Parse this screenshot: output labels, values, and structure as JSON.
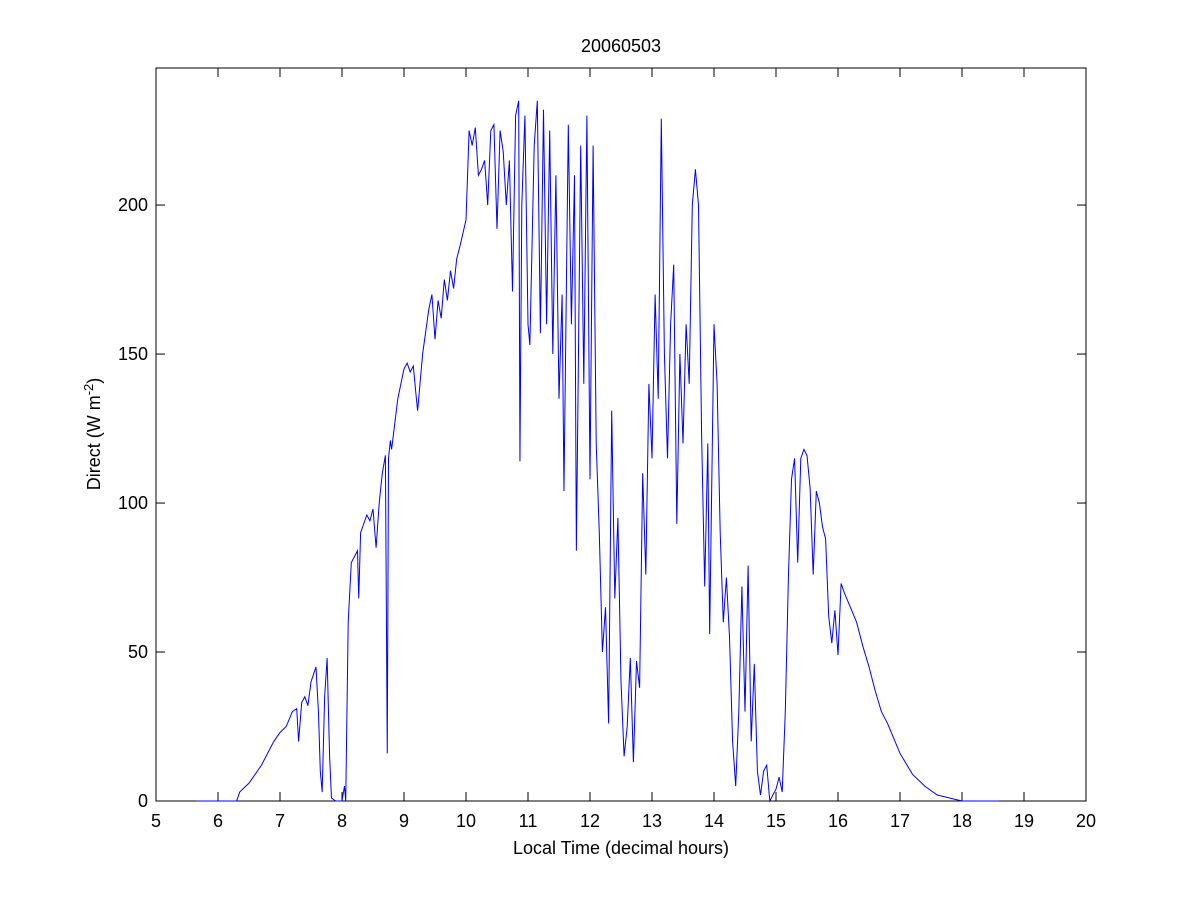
{
  "chart_data": {
    "type": "line",
    "title": "20060503",
    "xlabel": "Local Time (decimal hours)",
    "ylabel_parts": [
      "Direct (W m",
      "-2",
      ")"
    ],
    "xlim": [
      5,
      20
    ],
    "xticks": [
      5,
      6,
      7,
      8,
      9,
      10,
      11,
      12,
      13,
      14,
      15,
      16,
      17,
      18,
      19,
      20
    ],
    "ylim": [
      0,
      246
    ],
    "yticks": [
      0,
      50,
      100,
      150,
      200
    ],
    "series": [
      {
        "color": "#0000ff",
        "x": [
          5.65,
          6.0,
          6.3,
          6.35,
          6.5,
          6.7,
          6.9,
          7.0,
          7.1,
          7.2,
          7.27,
          7.3,
          7.35,
          7.4,
          7.45,
          7.5,
          7.58,
          7.62,
          7.65,
          7.68,
          7.72,
          7.76,
          7.8,
          7.83,
          7.9,
          8.0,
          8.04,
          8.06,
          8.1,
          8.15,
          8.2,
          8.25,
          8.27,
          8.3,
          8.4,
          8.45,
          8.5,
          8.55,
          8.6,
          8.65,
          8.7,
          8.73,
          8.75,
          8.78,
          8.8,
          8.9,
          9.0,
          9.05,
          9.1,
          9.15,
          9.2,
          9.22,
          9.3,
          9.4,
          9.45,
          9.5,
          9.55,
          9.6,
          9.65,
          9.7,
          9.75,
          9.8,
          9.85,
          9.9,
          10.0,
          10.05,
          10.1,
          10.15,
          10.2,
          10.25,
          10.3,
          10.35,
          10.4,
          10.45,
          10.5,
          10.55,
          10.6,
          10.65,
          10.7,
          10.75,
          10.8,
          10.85,
          10.87,
          10.9,
          10.95,
          11.0,
          11.03,
          11.1,
          11.15,
          11.2,
          11.25,
          11.3,
          11.35,
          11.4,
          11.45,
          11.5,
          11.55,
          11.58,
          11.65,
          11.7,
          11.75,
          11.78,
          11.85,
          11.9,
          11.95,
          12.0,
          12.05,
          12.1,
          12.15,
          12.2,
          12.25,
          12.3,
          12.35,
          12.4,
          12.45,
          12.5,
          12.55,
          12.6,
          12.65,
          12.7,
          12.75,
          12.8,
          12.85,
          12.9,
          12.95,
          13.0,
          13.05,
          13.1,
          13.15,
          13.2,
          13.25,
          13.3,
          13.35,
          13.4,
          13.45,
          13.5,
          13.55,
          13.6,
          13.65,
          13.7,
          13.75,
          13.8,
          13.85,
          13.9,
          13.93,
          14.0,
          14.05,
          14.1,
          14.15,
          14.2,
          14.25,
          14.3,
          14.35,
          14.4,
          14.45,
          14.5,
          14.55,
          14.6,
          14.65,
          14.7,
          14.75,
          14.8,
          14.85,
          14.9,
          14.95,
          15.0,
          15.05,
          15.1,
          15.15,
          15.2,
          15.25,
          15.3,
          15.35,
          15.4,
          15.45,
          15.5,
          15.55,
          15.6,
          15.65,
          15.7,
          15.75,
          15.8,
          15.85,
          15.9,
          15.95,
          16.0,
          16.05,
          16.1,
          16.2,
          16.3,
          16.4,
          16.5,
          16.6,
          16.7,
          16.8,
          16.9,
          17.0,
          17.2,
          17.4,
          17.6,
          17.8,
          18.0,
          18.6
        ],
        "values": [
          0,
          0,
          0,
          3,
          6,
          12,
          20,
          23,
          25,
          30,
          31,
          20,
          33,
          35,
          32,
          40,
          45,
          30,
          10,
          3,
          35,
          48,
          15,
          1,
          0,
          0,
          5,
          0,
          60,
          80,
          82,
          84,
          68,
          90,
          96,
          94,
          98,
          85,
          100,
          110,
          116,
          16,
          115,
          121,
          118,
          135,
          145,
          147,
          144,
          146,
          135,
          131,
          150,
          165,
          170,
          155,
          168,
          162,
          175,
          168,
          178,
          172,
          182,
          186,
          195,
          225,
          220,
          226,
          210,
          212,
          215,
          200,
          225,
          227,
          192,
          225,
          218,
          200,
          215,
          171,
          230,
          235,
          114,
          200,
          230,
          160,
          153,
          220,
          235,
          157,
          232,
          160,
          225,
          150,
          210,
          135,
          170,
          104,
          227,
          160,
          210,
          84,
          220,
          140,
          230,
          108,
          220,
          120,
          90,
          50,
          65,
          26,
          131,
          68,
          95,
          40,
          15,
          25,
          48,
          13,
          47,
          38,
          110,
          76,
          140,
          115,
          170,
          135,
          229,
          150,
          115,
          160,
          180,
          93,
          150,
          120,
          160,
          140,
          200,
          212,
          200,
          123,
          72,
          120,
          56,
          160,
          140,
          90,
          60,
          75,
          55,
          20,
          5,
          30,
          72,
          30,
          79,
          20,
          46,
          10,
          2,
          10,
          12,
          0,
          2,
          4,
          8,
          3,
          30,
          75,
          108,
          115,
          80,
          115,
          118,
          116,
          105,
          76,
          104,
          100,
          92,
          88,
          62,
          53,
          64,
          49,
          73,
          70,
          65,
          60,
          52,
          45,
          37,
          30,
          26,
          21,
          16,
          9,
          5,
          2,
          1,
          0,
          0
        ]
      }
    ]
  }
}
